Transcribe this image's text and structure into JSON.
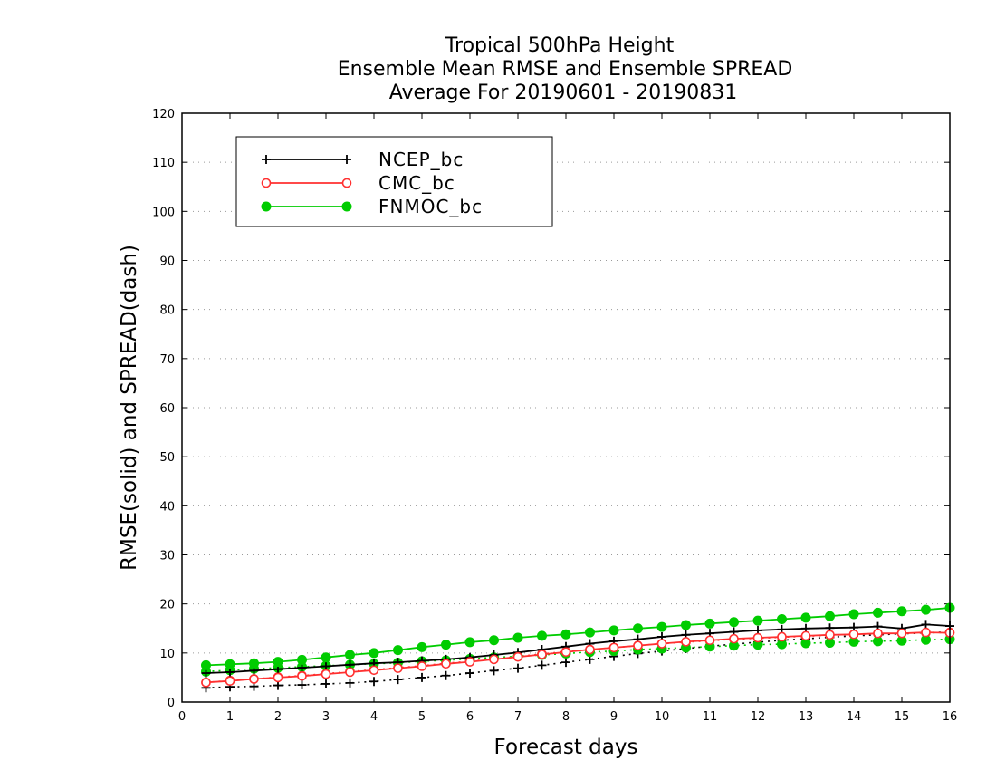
{
  "chart_data": {
    "type": "line",
    "title": [
      "Tropical 500hPa Height",
      "Ensemble Mean RMSE and Ensemble SPREAD",
      "Average For 20190601 - 20190831"
    ],
    "xlabel": "Forecast days",
    "ylabel": "RMSE(solid) and SPREAD(dash)",
    "xlim": [
      0,
      16
    ],
    "ylim": [
      0,
      120
    ],
    "xticks": [
      "0",
      "1",
      "2",
      "3",
      "4",
      "5",
      "6",
      "7",
      "8",
      "9",
      "10",
      "11",
      "12",
      "13",
      "14",
      "15",
      "16"
    ],
    "yticks": [
      "0",
      "10",
      "20",
      "30",
      "40",
      "50",
      "60",
      "70",
      "80",
      "90",
      "100",
      "110",
      "120"
    ],
    "grid": "horizontal dotted",
    "legend_position": "top-left",
    "x": [
      0.5,
      1,
      1.5,
      2,
      2.5,
      3,
      3.5,
      4,
      4.5,
      5,
      5.5,
      6,
      6.5,
      7,
      7.5,
      8,
      8.5,
      9,
      9.5,
      10,
      10.5,
      11,
      11.5,
      12,
      12.5,
      13,
      13.5,
      14,
      14.5,
      15,
      15.5,
      16
    ],
    "series": [
      {
        "name": "NCEP_bc",
        "color": "#000000",
        "marker": "plus",
        "rmse": [
          5.9,
          6.1,
          6.4,
          6.7,
          7.0,
          7.3,
          7.6,
          7.9,
          8.1,
          8.4,
          8.7,
          9.1,
          9.6,
          10.1,
          10.7,
          11.3,
          11.9,
          12.4,
          12.8,
          13.3,
          13.7,
          14.0,
          14.3,
          14.6,
          14.8,
          15.0,
          15.1,
          15.2,
          15.4,
          15.0,
          15.8,
          15.5
        ],
        "spread": [
          2.9,
          3.1,
          3.2,
          3.4,
          3.5,
          3.7,
          3.9,
          4.2,
          4.6,
          5.0,
          5.4,
          5.9,
          6.4,
          6.9,
          7.5,
          8.1,
          8.7,
          9.3,
          9.9,
          10.4,
          10.9,
          11.4,
          11.8,
          12.2,
          12.6,
          12.9,
          13.2,
          13.5,
          13.7,
          13.9,
          14.1,
          14.3
        ]
      },
      {
        "name": "CMC_bc",
        "color": "#ff3030",
        "marker": "open-circle",
        "rmse": [
          4.0,
          4.3,
          4.7,
          5.0,
          5.3,
          5.7,
          6.1,
          6.5,
          6.9,
          7.3,
          7.8,
          8.2,
          8.7,
          9.2,
          9.7,
          10.2,
          10.7,
          11.1,
          11.5,
          11.9,
          12.3,
          12.6,
          12.9,
          13.1,
          13.3,
          13.5,
          13.7,
          13.8,
          14.0,
          14.0,
          14.2,
          14.1
        ],
        "spread": [
          4.0,
          4.4,
          4.7,
          5.1,
          5.4,
          5.8,
          6.2,
          6.6,
          7.0,
          7.4,
          7.9,
          8.3,
          8.8,
          9.3,
          9.8,
          10.3,
          10.7,
          11.1,
          11.5,
          11.9,
          12.2,
          12.5,
          12.8,
          13.0,
          13.2,
          13.4,
          13.6,
          13.8,
          13.9,
          14.0,
          14.1,
          14.2
        ]
      },
      {
        "name": "FNMOC_bc",
        "color": "#00cc00",
        "marker": "filled-circle",
        "rmse": [
          7.5,
          7.7,
          7.9,
          8.2,
          8.6,
          9.1,
          9.6,
          10.0,
          10.6,
          11.2,
          11.7,
          12.2,
          12.6,
          13.1,
          13.5,
          13.8,
          14.2,
          14.6,
          15.0,
          15.3,
          15.7,
          16.0,
          16.3,
          16.6,
          16.9,
          17.2,
          17.5,
          17.9,
          18.2,
          18.5,
          18.8,
          19.2
        ],
        "spread": [
          6.2,
          6.5,
          6.8,
          7.0,
          7.2,
          7.4,
          7.6,
          7.8,
          8.0,
          8.3,
          8.5,
          8.8,
          9.1,
          9.3,
          9.6,
          9.9,
          10.2,
          10.4,
          10.7,
          10.9,
          11.1,
          11.3,
          11.5,
          11.7,
          11.8,
          12.0,
          12.1,
          12.3,
          12.4,
          12.5,
          12.7,
          12.8
        ]
      }
    ]
  }
}
